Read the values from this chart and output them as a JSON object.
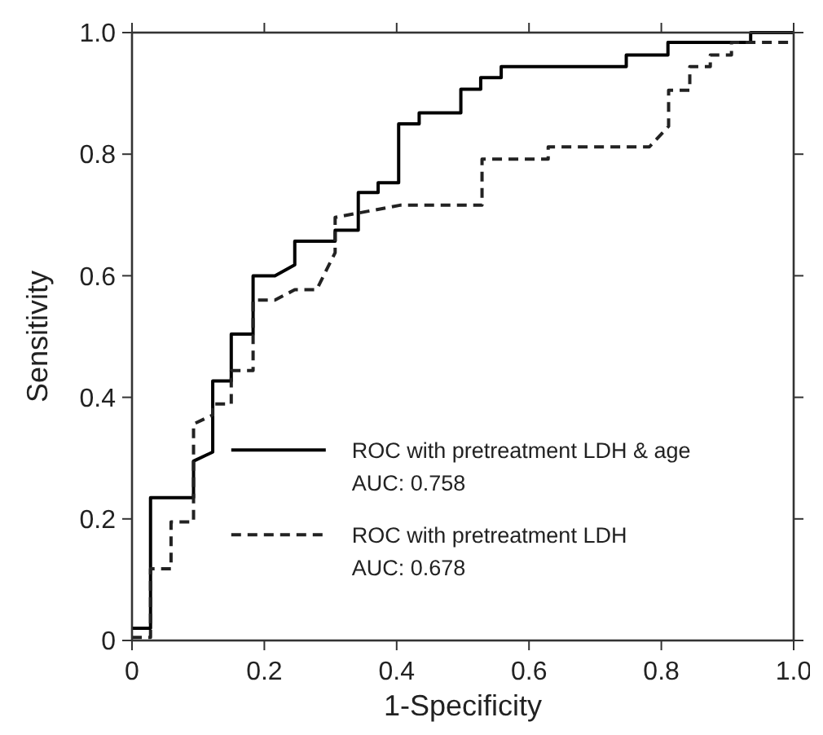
{
  "chart_data": {
    "type": "line",
    "xlabel": "1-Specificity",
    "ylabel": "Sensitivity",
    "xlim": [
      0,
      1
    ],
    "ylim": [
      0,
      1
    ],
    "xticks": [
      0,
      0.2,
      0.4,
      0.6,
      0.8,
      {
        "value": 1,
        "label": "1.0"
      }
    ],
    "yticks": [
      0,
      0.2,
      0.4,
      0.6,
      0.8,
      {
        "value": 1,
        "label": "1.0"
      }
    ],
    "grid": false,
    "legend": "bottom right",
    "annotations": [
      "AUC: 0.758",
      "AUC: 0.678"
    ],
    "series": [
      {
        "name": "ROC with pretreatment LDH & age",
        "color": "#000000",
        "line_style": "solid",
        "x": [
          0,
          0.028,
          0.028,
          0.093,
          0.093,
          0.122,
          0.122,
          0.15,
          0.15,
          0.183,
          0.183,
          0.216,
          0.246,
          0.246,
          0.307,
          0.307,
          0.342,
          0.342,
          0.372,
          0.372,
          0.403,
          0.403,
          0.434,
          0.434,
          0.497,
          0.497,
          0.527,
          0.527,
          0.558,
          0.558,
          0.747,
          0.747,
          0.81,
          0.81,
          0.935,
          0.935,
          1
        ],
        "values": [
          0.02,
          0.02,
          0.235,
          0.235,
          0.295,
          0.31,
          0.427,
          0.427,
          0.504,
          0.504,
          0.6,
          0.6,
          0.618,
          0.657,
          0.657,
          0.675,
          0.675,
          0.737,
          0.737,
          0.753,
          0.753,
          0.85,
          0.85,
          0.868,
          0.868,
          0.907,
          0.907,
          0.926,
          0.926,
          0.944,
          0.944,
          0.963,
          0.963,
          0.984,
          0.984,
          1,
          1
        ]
      },
      {
        "name": "ROC with pretreatment LDH",
        "color": "#222222",
        "line_style": "dashed",
        "x": [
          0,
          0.028,
          0.028,
          0.059,
          0.059,
          0.093,
          0.093,
          0.122,
          0.122,
          0.15,
          0.15,
          0.183,
          0.183,
          0.216,
          0.246,
          0.279,
          0.307,
          0.307,
          0.405,
          0.529,
          0.529,
          0.629,
          0.629,
          0.782,
          0.811,
          0.811,
          0.843,
          0.843,
          0.874,
          0.874,
          0.906,
          0.906,
          1
        ],
        "values": [
          0.005,
          0.005,
          0.118,
          0.118,
          0.195,
          0.195,
          0.356,
          0.371,
          0.389,
          0.389,
          0.444,
          0.444,
          0.56,
          0.56,
          0.577,
          0.577,
          0.638,
          0.696,
          0.716,
          0.716,
          0.792,
          0.792,
          0.812,
          0.812,
          0.846,
          0.905,
          0.905,
          0.944,
          0.944,
          0.963,
          0.963,
          0.984,
          0.984
        ]
      }
    ]
  }
}
